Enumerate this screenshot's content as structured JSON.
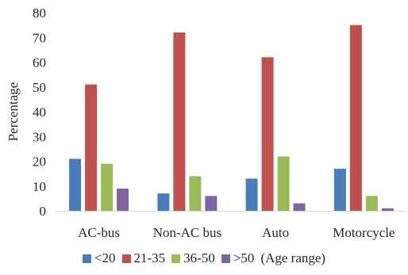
{
  "chart_data": {
    "type": "bar",
    "title": "",
    "xlabel": "",
    "ylabel": "Percentage",
    "ylim": [
      0,
      80
    ],
    "yticks": [
      0,
      10,
      20,
      30,
      40,
      50,
      60,
      70,
      80
    ],
    "grid": false,
    "legend_position": "bottom",
    "legend_note": "(Age range)",
    "categories": [
      "AC-bus",
      "Non-AC bus",
      "Auto",
      "Motorcycle"
    ],
    "series": [
      {
        "name": "<20",
        "color": "#4a7ebb",
        "values": [
          21,
          7,
          13,
          17
        ]
      },
      {
        "name": "21-35",
        "color": "#c0504d",
        "values": [
          51,
          72,
          62,
          75
        ]
      },
      {
        "name": "36-50",
        "color": "#9bbb59",
        "values": [
          19,
          14,
          22,
          6
        ]
      },
      {
        "name": ">50",
        "color": "#8064a2",
        "values": [
          9,
          6,
          3,
          1
        ]
      }
    ]
  }
}
